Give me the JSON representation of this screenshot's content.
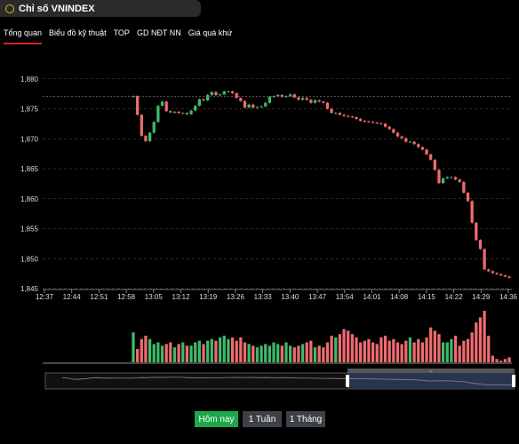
{
  "header": {
    "title": "Chỉ số VNINDEX",
    "icon": "circle-icon",
    "accent": "#e2b31f"
  },
  "tabs": [
    {
      "label": "Tổng quan",
      "active": true
    },
    {
      "label": "Biểu đồ kỹ thuật",
      "active": false
    },
    {
      "label": "TOP",
      "active": false
    },
    {
      "label": "GD NĐT NN",
      "active": false
    },
    {
      "label": "Giá quá khứ",
      "active": false
    }
  ],
  "chart_data": {
    "type": "candlestick",
    "ylim": [
      1845,
      1881
    ],
    "yticks": [
      "1,880",
      "1,875",
      "1,870",
      "1,865",
      "1,860",
      "1,855",
      "1,850",
      "1,845"
    ],
    "ytick_values": [
      1880,
      1875,
      1870,
      1865,
      1860,
      1855,
      1850,
      1845
    ],
    "xticks": [
      "12:37",
      "12:44",
      "12:51",
      "12:58",
      "13:05",
      "13:12",
      "13:19",
      "13:26",
      "13:33",
      "13:40",
      "13:47",
      "13:54",
      "14:01",
      "14:08",
      "14:15",
      "14:22",
      "14:29",
      "14:36"
    ],
    "reference_level": 1877.1,
    "up_color": "#3fb96a",
    "down_color": "#ef6b6f",
    "grid": true,
    "close": [
      1877.1,
      1874.0,
      1870.5,
      1869.6,
      1871.0,
      1872.8,
      1875.5,
      1876.2,
      1874.6,
      1874.4,
      1874.5,
      1874.3,
      1874.3,
      1874.1,
      1874.7,
      1875.5,
      1876.6,
      1876.4,
      1877.3,
      1877.8,
      1877.3,
      1877.4,
      1877.9,
      1877.9,
      1877.6,
      1876.8,
      1876.3,
      1875.2,
      1875.7,
      1875.2,
      1875.3,
      1875.4,
      1876.0,
      1877.0,
      1877.1,
      1877.3,
      1877.0,
      1877.1,
      1877.4,
      1876.9,
      1876.5,
      1876.8,
      1876.5,
      1876.0,
      1876.4,
      1876.2,
      1876.0,
      1875.0,
      1874.3,
      1874.3,
      1874.0,
      1873.8,
      1873.7,
      1873.6,
      1873.3,
      1873.0,
      1872.9,
      1872.8,
      1872.7,
      1872.6,
      1872.5,
      1872.0,
      1871.6,
      1871.0,
      1870.4,
      1870.1,
      1869.5,
      1869.5,
      1869.1,
      1868.6,
      1868.2,
      1867.4,
      1866.5,
      1864.8,
      1862.6,
      1863.4,
      1863.6,
      1863.6,
      1863.2,
      1862.8,
      1861.0,
      1859.6,
      1856.0,
      1853.1,
      1851.6,
      1848.2,
      1847.9,
      1847.6,
      1847.4,
      1847.2,
      1847.0,
      1846.8
    ],
    "volume": [
      18,
      8,
      14,
      16,
      14,
      11,
      12,
      10,
      11,
      12,
      9,
      11,
      12,
      10,
      10,
      12,
      13,
      11,
      13,
      14,
      13,
      15,
      16,
      14,
      15,
      13,
      15,
      12,
      11,
      10,
      9,
      10,
      11,
      10,
      12,
      11,
      10,
      12,
      10,
      9,
      10,
      11,
      12,
      13,
      9,
      10,
      9,
      12,
      16,
      15,
      17,
      20,
      19,
      17,
      15,
      12,
      13,
      14,
      12,
      11,
      15,
      16,
      13,
      14,
      12,
      11,
      13,
      15,
      12,
      14,
      12,
      15,
      21,
      19,
      17,
      12,
      12,
      14,
      16,
      10,
      13,
      14,
      18,
      24,
      27,
      31,
      16,
      4,
      2,
      1,
      2,
      3
    ]
  },
  "navigator": {
    "label": "III"
  },
  "range_buttons": [
    {
      "label": "Hôm nay",
      "active": true,
      "color": "#1da84a"
    },
    {
      "label": "1 Tuần",
      "active": false
    },
    {
      "label": "1 Tháng",
      "active": false
    }
  ]
}
